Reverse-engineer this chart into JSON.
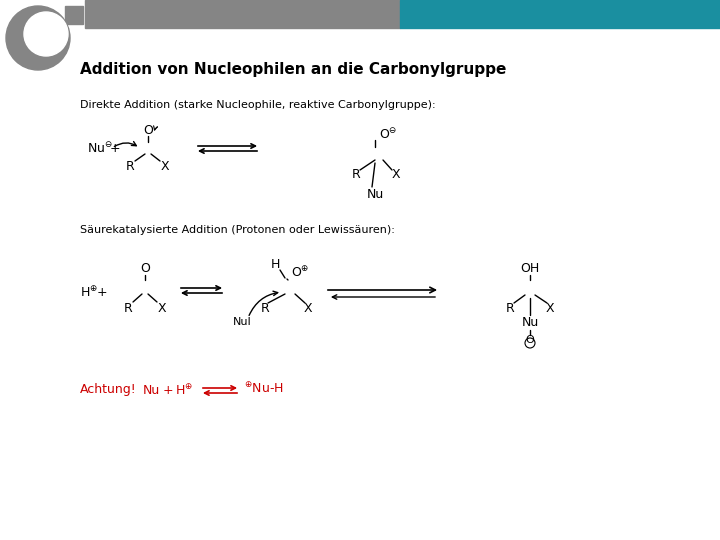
{
  "header_gray_color": "#858585",
  "header_teal_color": "#1a8fa0",
  "bg_color": "#ffffff",
  "text_color": "#000000",
  "red_color": "#cc0000",
  "title": "Addition von Nucleophilen an die Carbonylgruppe",
  "section1_label": "Direkte Addition (starke Nucleophile, reaktive Carbonylgruppe):",
  "section2_label": "Säurekatalysierte Addition (Protonen oder Lewissäuren):"
}
